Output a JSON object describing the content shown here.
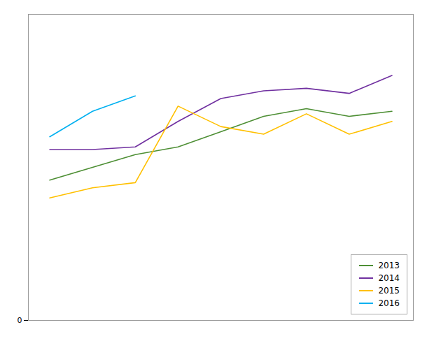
{
  "chart_data": {
    "type": "line",
    "x": [
      1,
      2,
      3,
      4,
      5,
      6,
      7,
      8,
      9
    ],
    "series": [
      {
        "name": "2013",
        "color": "#4e8f35",
        "values": [
          55,
          60,
          65,
          68,
          74,
          80,
          83,
          80,
          82
        ]
      },
      {
        "name": "2014",
        "color": "#7030a0",
        "values": [
          67,
          67,
          68,
          78,
          87,
          90,
          91,
          89,
          96
        ]
      },
      {
        "name": "2015",
        "color": "#ffc000",
        "values": [
          48,
          52,
          54,
          84,
          76,
          73,
          81,
          73,
          78
        ]
      },
      {
        "name": "2016",
        "color": "#00b0f0",
        "values": [
          72,
          82,
          88,
          null,
          null,
          null,
          null,
          null,
          null
        ]
      }
    ],
    "xlim": [
      0.5,
      9.5
    ],
    "xticks": [],
    "ylim": [
      0,
      120
    ],
    "yticks": [
      0
    ],
    "grid": true,
    "legend": "lower right",
    "tick_labels": "y"
  }
}
